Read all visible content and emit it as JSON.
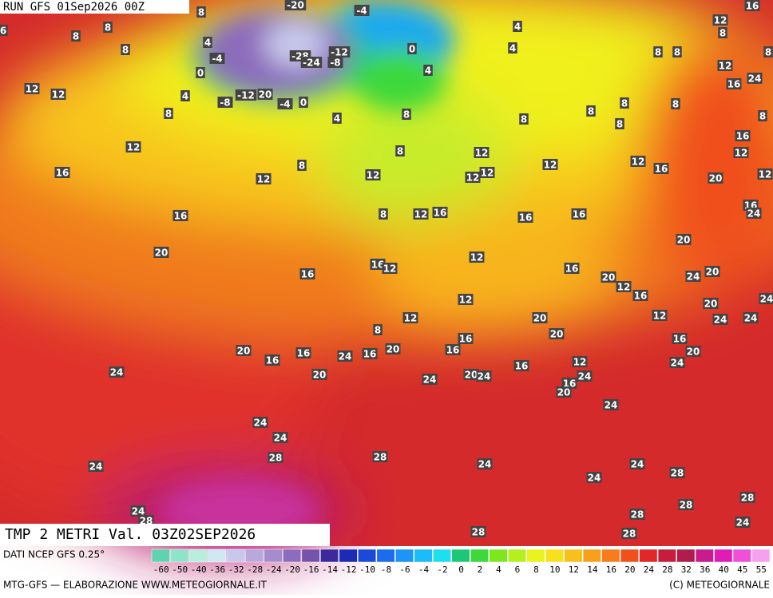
{
  "header": {
    "run": "RUN GFS 01Sep2026 00Z"
  },
  "map": {
    "labels": [
      8,
      -20,
      -4,
      16,
      6,
      8,
      8,
      4,
      4,
      12,
      8,
      8,
      -4,
      -12,
      0,
      4,
      8,
      8,
      12,
      8,
      0,
      -28,
      -24,
      -8,
      4,
      24,
      12,
      12,
      4,
      -8,
      -12,
      20,
      -4,
      0,
      16,
      8,
      4,
      8,
      8,
      8,
      8,
      8,
      8,
      8,
      16,
      12,
      8,
      12,
      12,
      8,
      16,
      12,
      12,
      12,
      12,
      12,
      12,
      16,
      20,
      12,
      16,
      24,
      16,
      8,
      12,
      16,
      16,
      16,
      20,
      20,
      16,
      16,
      12,
      12,
      16,
      20,
      12,
      16,
      24,
      20,
      24,
      20,
      12,
      12,
      20,
      20,
      12,
      24,
      24,
      8,
      16,
      16,
      20,
      16,
      16,
      24,
      16,
      20,
      16,
      20,
      24,
      24,
      20,
      24,
      20,
      24,
      16,
      12,
      16,
      24,
      20,
      24,
      24,
      24,
      28,
      28,
      24,
      24,
      24,
      28,
      24,
      28,
      28,
      24,
      28,
      28,
      24,
      28,
      28
    ]
  },
  "footer": {
    "title": "TMP 2 METRI Val. 03Z02SEP2026",
    "source": "DATI NCEP GFS 0.25°",
    "credit": "MTG-GFS — ELABORAZIONE WWW.METEOGIORNALE.IT",
    "copyright": "(C) METEOGIORNALE"
  },
  "legend": {
    "ticks": [
      -60,
      -50,
      -40,
      -36,
      -32,
      -28,
      -24,
      -20,
      -16,
      -14,
      -12,
      -10,
      -8,
      -6,
      -4,
      -2,
      0,
      2,
      4,
      6,
      8,
      10,
      12,
      14,
      16,
      20,
      24,
      28,
      32,
      36,
      40,
      45,
      55
    ],
    "colors": [
      "#5fd3b0",
      "#8fe3c8",
      "#b9eedd",
      "#cfe8f2",
      "#c8c8ec",
      "#b9a8dc",
      "#a58ccc",
      "#8c6cbc",
      "#7652ac",
      "#3a2a9c",
      "#1c2ab8",
      "#1c4ad8",
      "#1c6cf0",
      "#1c94f8",
      "#1cbcf8",
      "#1ce0f0",
      "#1cc878",
      "#3cd83c",
      "#7ce81c",
      "#b4f01c",
      "#e8f41c",
      "#f8e01c",
      "#f8c01c",
      "#f8a01c",
      "#f87c1c",
      "#f0501c",
      "#e02828",
      "#c81c3c",
      "#b01c4c",
      "#c81c8c",
      "#e01cb4",
      "#f050d8",
      "#f8a0f0"
    ]
  }
}
